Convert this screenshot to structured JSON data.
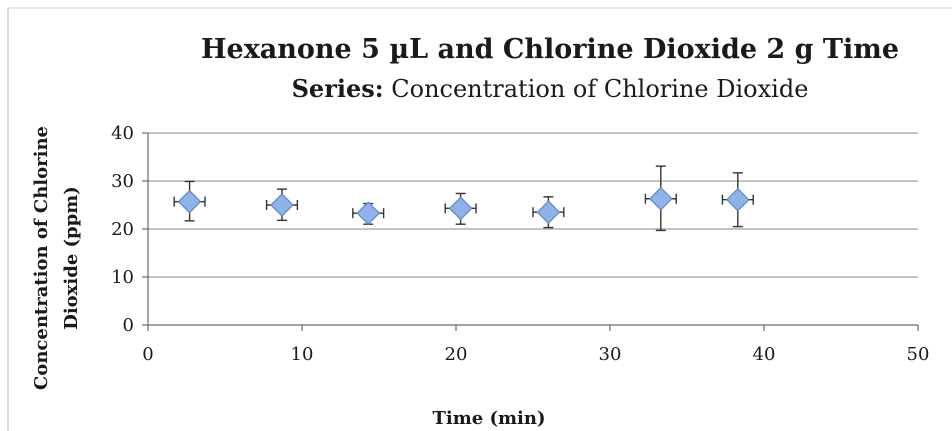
{
  "chart_data": {
    "type": "scatter",
    "title": "Hexanone 5 µL and Chlorine Dioxide 2 g Time",
    "subtitle_prefix": "Series:",
    "subtitle": "Concentration of  Chlorine Dioxide",
    "xlabel": "Time (min)",
    "ylabel_line1": "Concentration of Chlorine",
    "ylabel_line2": "Dioxide (ppm)",
    "xlim": [
      0,
      50
    ],
    "ylim": [
      0,
      40
    ],
    "xticks": [
      0,
      10,
      20,
      30,
      40,
      50
    ],
    "yticks": [
      0,
      10,
      20,
      30,
      40
    ],
    "grid": "horizontal",
    "marker": "diamond",
    "colors": {
      "marker_fill": "#8fb3e8",
      "marker_edge": "#5b87c9",
      "gridline": "#888888",
      "error_bar": "#333333"
    },
    "series": [
      {
        "x": [
          2.7,
          8.7,
          14.3,
          20.3,
          26.0,
          33.3,
          38.3
        ],
        "y": [
          25.7,
          25.0,
          23.3,
          24.3,
          23.5,
          26.3,
          26.1
        ],
        "y_err_low": [
          4.0,
          3.2,
          2.3,
          3.3,
          3.2,
          6.6,
          5.6
        ],
        "y_err_high": [
          4.2,
          3.3,
          2.0,
          3.1,
          3.2,
          6.8,
          5.6
        ],
        "x_err": [
          1.0,
          1.0,
          1.0,
          1.0,
          1.0,
          1.0,
          1.0
        ]
      }
    ]
  }
}
